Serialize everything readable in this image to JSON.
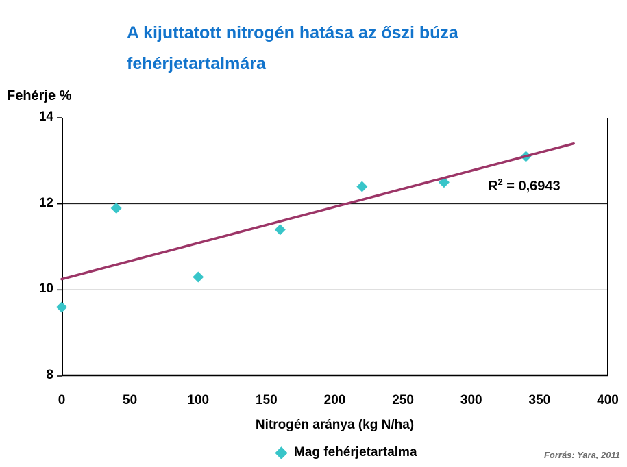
{
  "page": {
    "title_lines": [
      "A kijuttatott nitrogén hatása az őszi búza",
      "fehérjetartalmára"
    ],
    "title_color": "#1274CC",
    "source": "Forrás: Yara, 2011"
  },
  "chart_data": {
    "type": "scatter",
    "title": "A kijuttatott nitrogén hatása az őszi búza fehérjetartalmára",
    "ylabel": "Fehérje %",
    "xlabel": "Nitrogén aránya (kg N/ha)",
    "xlim": [
      0,
      400
    ],
    "ylim": [
      8,
      14
    ],
    "xticks": [
      0,
      50,
      100,
      150,
      200,
      250,
      300,
      350,
      400
    ],
    "yticks": [
      14,
      12,
      10,
      8
    ],
    "gridlines_y": [
      12,
      10
    ],
    "grid": "horizontal-only",
    "legend_position": "bottom-center",
    "series": [
      {
        "name": "Mag fehérjetartalma",
        "marker": "diamond",
        "color": "#38C5C9",
        "points": [
          [
            0,
            9.6
          ],
          [
            40,
            11.9
          ],
          [
            100,
            10.3
          ],
          [
            160,
            11.4
          ],
          [
            220,
            12.4
          ],
          [
            280,
            12.5
          ],
          [
            340,
            13.1
          ]
        ]
      }
    ],
    "trendline": {
      "type": "linear",
      "color": "#9C3567",
      "from": [
        0,
        10.25
      ],
      "to": [
        375,
        13.4
      ],
      "r_squared": "0,6943"
    },
    "annotation": {
      "base": "R",
      "sup": "2",
      "rest": " = 0,6943"
    }
  }
}
